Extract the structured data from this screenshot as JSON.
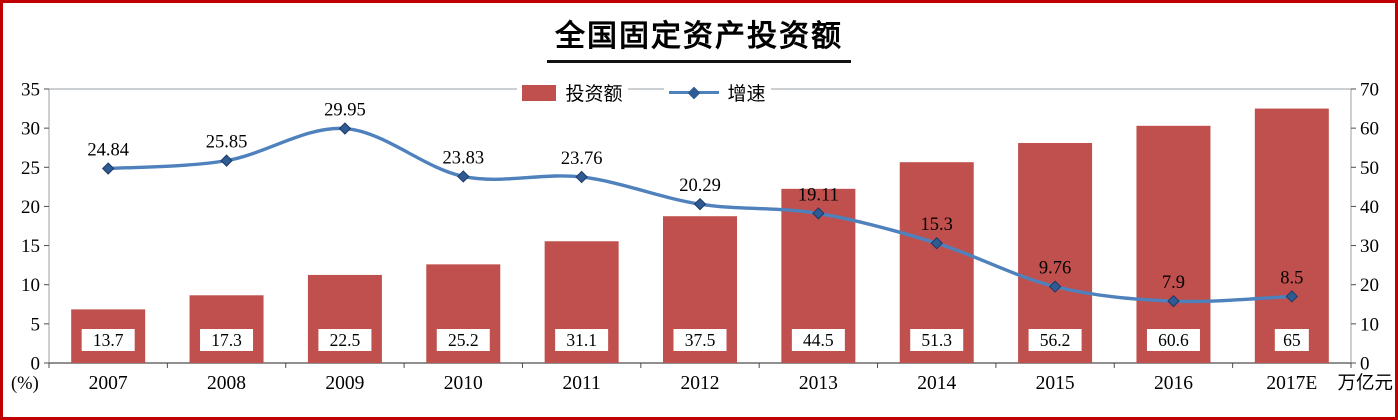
{
  "page": {
    "title": "全国固定资产投资额"
  },
  "chart_data": {
    "type": "combo-bar-line",
    "title": "全国固定资产投资额",
    "categories": [
      "2007",
      "2008",
      "2009",
      "2010",
      "2011",
      "2012",
      "2013",
      "2014",
      "2015",
      "2016",
      "2017E"
    ],
    "series": [
      {
        "name": "投资额",
        "chart_type": "bar",
        "axis": "right",
        "color": "#C0504D",
        "values": [
          13.7,
          17.3,
          22.5,
          25.2,
          31.1,
          37.5,
          44.5,
          51.3,
          56.2,
          60.6,
          65
        ]
      },
      {
        "name": "增速",
        "chart_type": "line",
        "axis": "left",
        "color": "#4F81BD",
        "marker": "diamond",
        "marker_color": "#2F5B94",
        "values": [
          24.84,
          25.85,
          29.95,
          23.83,
          23.76,
          20.29,
          19.11,
          15.3,
          9.76,
          7.9,
          8.5
        ]
      }
    ],
    "left_axis": {
      "unit": "(%)",
      "min": 0,
      "max": 35,
      "ticks": [
        35,
        30,
        25,
        20,
        15,
        10,
        5,
        0
      ]
    },
    "right_axis": {
      "unit": "万亿元",
      "min": 0,
      "max": 70,
      "ticks": [
        70,
        60,
        50,
        40,
        30,
        20,
        10,
        0
      ]
    },
    "legend_position": "top-center",
    "grid": false,
    "frame_color": "#C00000"
  }
}
